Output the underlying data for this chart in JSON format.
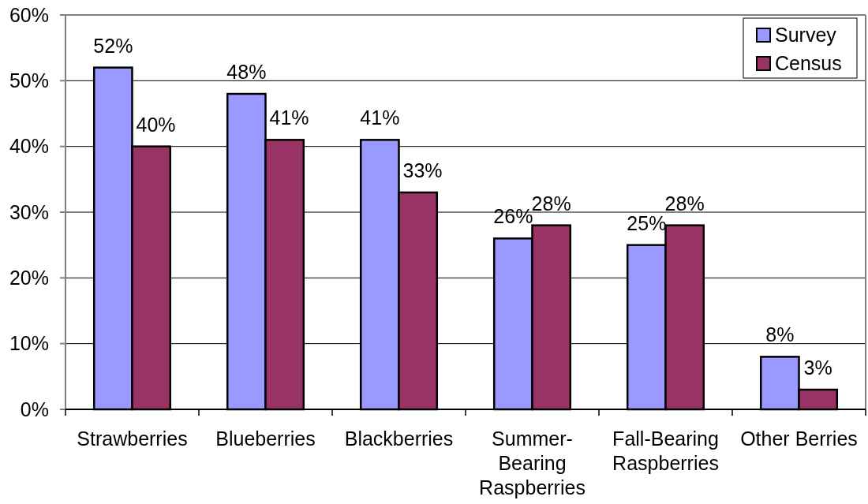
{
  "chart_data": {
    "type": "bar",
    "categories": [
      "Strawberries",
      "Blueberries",
      "Blackberries",
      "Summer-Bearing Raspberries",
      "Fall-Bearing Raspberries",
      "Other Berries"
    ],
    "series": [
      {
        "name": "Survey",
        "color": "#9999ff",
        "values": [
          52,
          48,
          41,
          26,
          25,
          8
        ],
        "value_labels": [
          "52%",
          "48%",
          "41%",
          "26%",
          "25%",
          "8%"
        ]
      },
      {
        "name": "Census",
        "color": "#993366",
        "values": [
          40,
          41,
          33,
          28,
          28,
          3
        ],
        "value_labels": [
          "40%",
          "41%",
          "33%",
          "28%",
          "28%",
          "3%"
        ]
      }
    ],
    "ylim": [
      0,
      60
    ],
    "yticks": [
      {
        "value": 0,
        "label": "0%"
      },
      {
        "value": 10,
        "label": "10%"
      },
      {
        "value": 20,
        "label": "20%"
      },
      {
        "value": 30,
        "label": "30%"
      },
      {
        "value": 40,
        "label": "40%"
      },
      {
        "value": 50,
        "label": "50%"
      },
      {
        "value": 60,
        "label": "60%"
      }
    ],
    "grid": "y",
    "legend": "top right"
  }
}
